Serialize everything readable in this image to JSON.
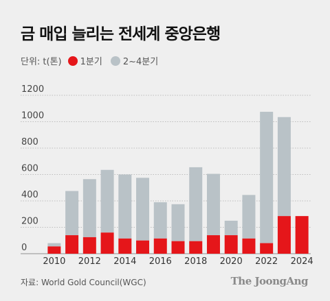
{
  "title": "금 매입 늘리는 전세계 중앙은행",
  "legend": {
    "unit_label": "단위: t(톤)",
    "items": [
      {
        "label": "1분기",
        "color": "#e5161a"
      },
      {
        "label": "2~4분기",
        "color": "#b9c2c7"
      }
    ]
  },
  "source": "자료: World Gold Council(WGC)",
  "brand": "The JoongAng",
  "colors": {
    "background": "#efefef",
    "grid": "#bdbdbd",
    "axis_text": "#333333"
  },
  "chart_data": {
    "type": "bar",
    "stacked": true,
    "categories": [
      "2010",
      "2011",
      "2012",
      "2013",
      "2014",
      "2015",
      "2016",
      "2017",
      "2018",
      "2019",
      "2020",
      "2021",
      "2022",
      "2023",
      "2024"
    ],
    "series": [
      {
        "name": "1분기",
        "values": [
          55,
          140,
          125,
          160,
          115,
          100,
          115,
          95,
          95,
          140,
          140,
          115,
          80,
          285,
          285
        ]
      },
      {
        "name": "2~4분기",
        "values": [
          25,
          335,
          440,
          475,
          485,
          475,
          275,
          280,
          560,
          465,
          110,
          330,
          995,
          750,
          0
        ]
      }
    ],
    "xticks": [
      "2010",
      "2012",
      "2014",
      "2016",
      "2018",
      "2020",
      "2022",
      "2024"
    ],
    "yticks": [
      0,
      200,
      400,
      600,
      800,
      1000,
      1200
    ],
    "ylim": [
      0,
      1200
    ],
    "grid": true,
    "legend_position": "top-left"
  }
}
